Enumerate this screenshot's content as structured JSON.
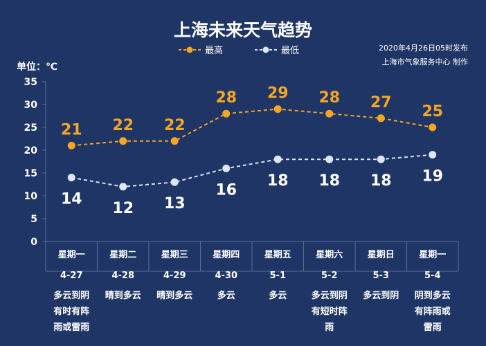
{
  "title": "上海未来天气趋势",
  "unit_label": "单位：℃",
  "publish_note": "2020年4月26日05时发布",
  "producer_note": "上海市气象服务中心  制作",
  "colors": {
    "background": "#1f3566",
    "high": "#f5a623",
    "low": "#dde6f2",
    "grid": "#5a6e96"
  },
  "chart_data": {
    "type": "line",
    "ylim": [
      0,
      35
    ],
    "yticks": [
      0,
      5,
      10,
      15,
      20,
      25,
      30,
      35
    ],
    "grid": false,
    "legend_position": "top-center",
    "series": [
      {
        "name": "最高",
        "color": "#f5a623",
        "values": [
          21,
          22,
          22,
          28,
          29,
          28,
          27,
          25
        ]
      },
      {
        "name": "最低",
        "color": "#dde6f2",
        "values": [
          14,
          12,
          13,
          16,
          18,
          18,
          18,
          19
        ]
      }
    ],
    "days": [
      {
        "weekday": "星期一",
        "date": "4-27",
        "weather": [
          "多云到阴",
          "有时有阵",
          "雨或雷雨"
        ]
      },
      {
        "weekday": "星期二",
        "date": "4-28",
        "weather": [
          "晴到多云"
        ]
      },
      {
        "weekday": "星期三",
        "date": "4-29",
        "weather": [
          "晴到多云"
        ]
      },
      {
        "weekday": "星期四",
        "date": "4-30",
        "weather": [
          "多云"
        ]
      },
      {
        "weekday": "星期五",
        "date": "5-1",
        "weather": [
          "多云"
        ]
      },
      {
        "weekday": "星期六",
        "date": "5-2",
        "weather": [
          "多云到阴",
          "有短时阵",
          "雨"
        ]
      },
      {
        "weekday": "星期日",
        "date": "5-3",
        "weather": [
          "多云到阴"
        ]
      },
      {
        "weekday": "星期一",
        "date": "5-4",
        "weather": [
          "阴到多云",
          "有阵雨或",
          "雷雨"
        ]
      }
    ]
  }
}
